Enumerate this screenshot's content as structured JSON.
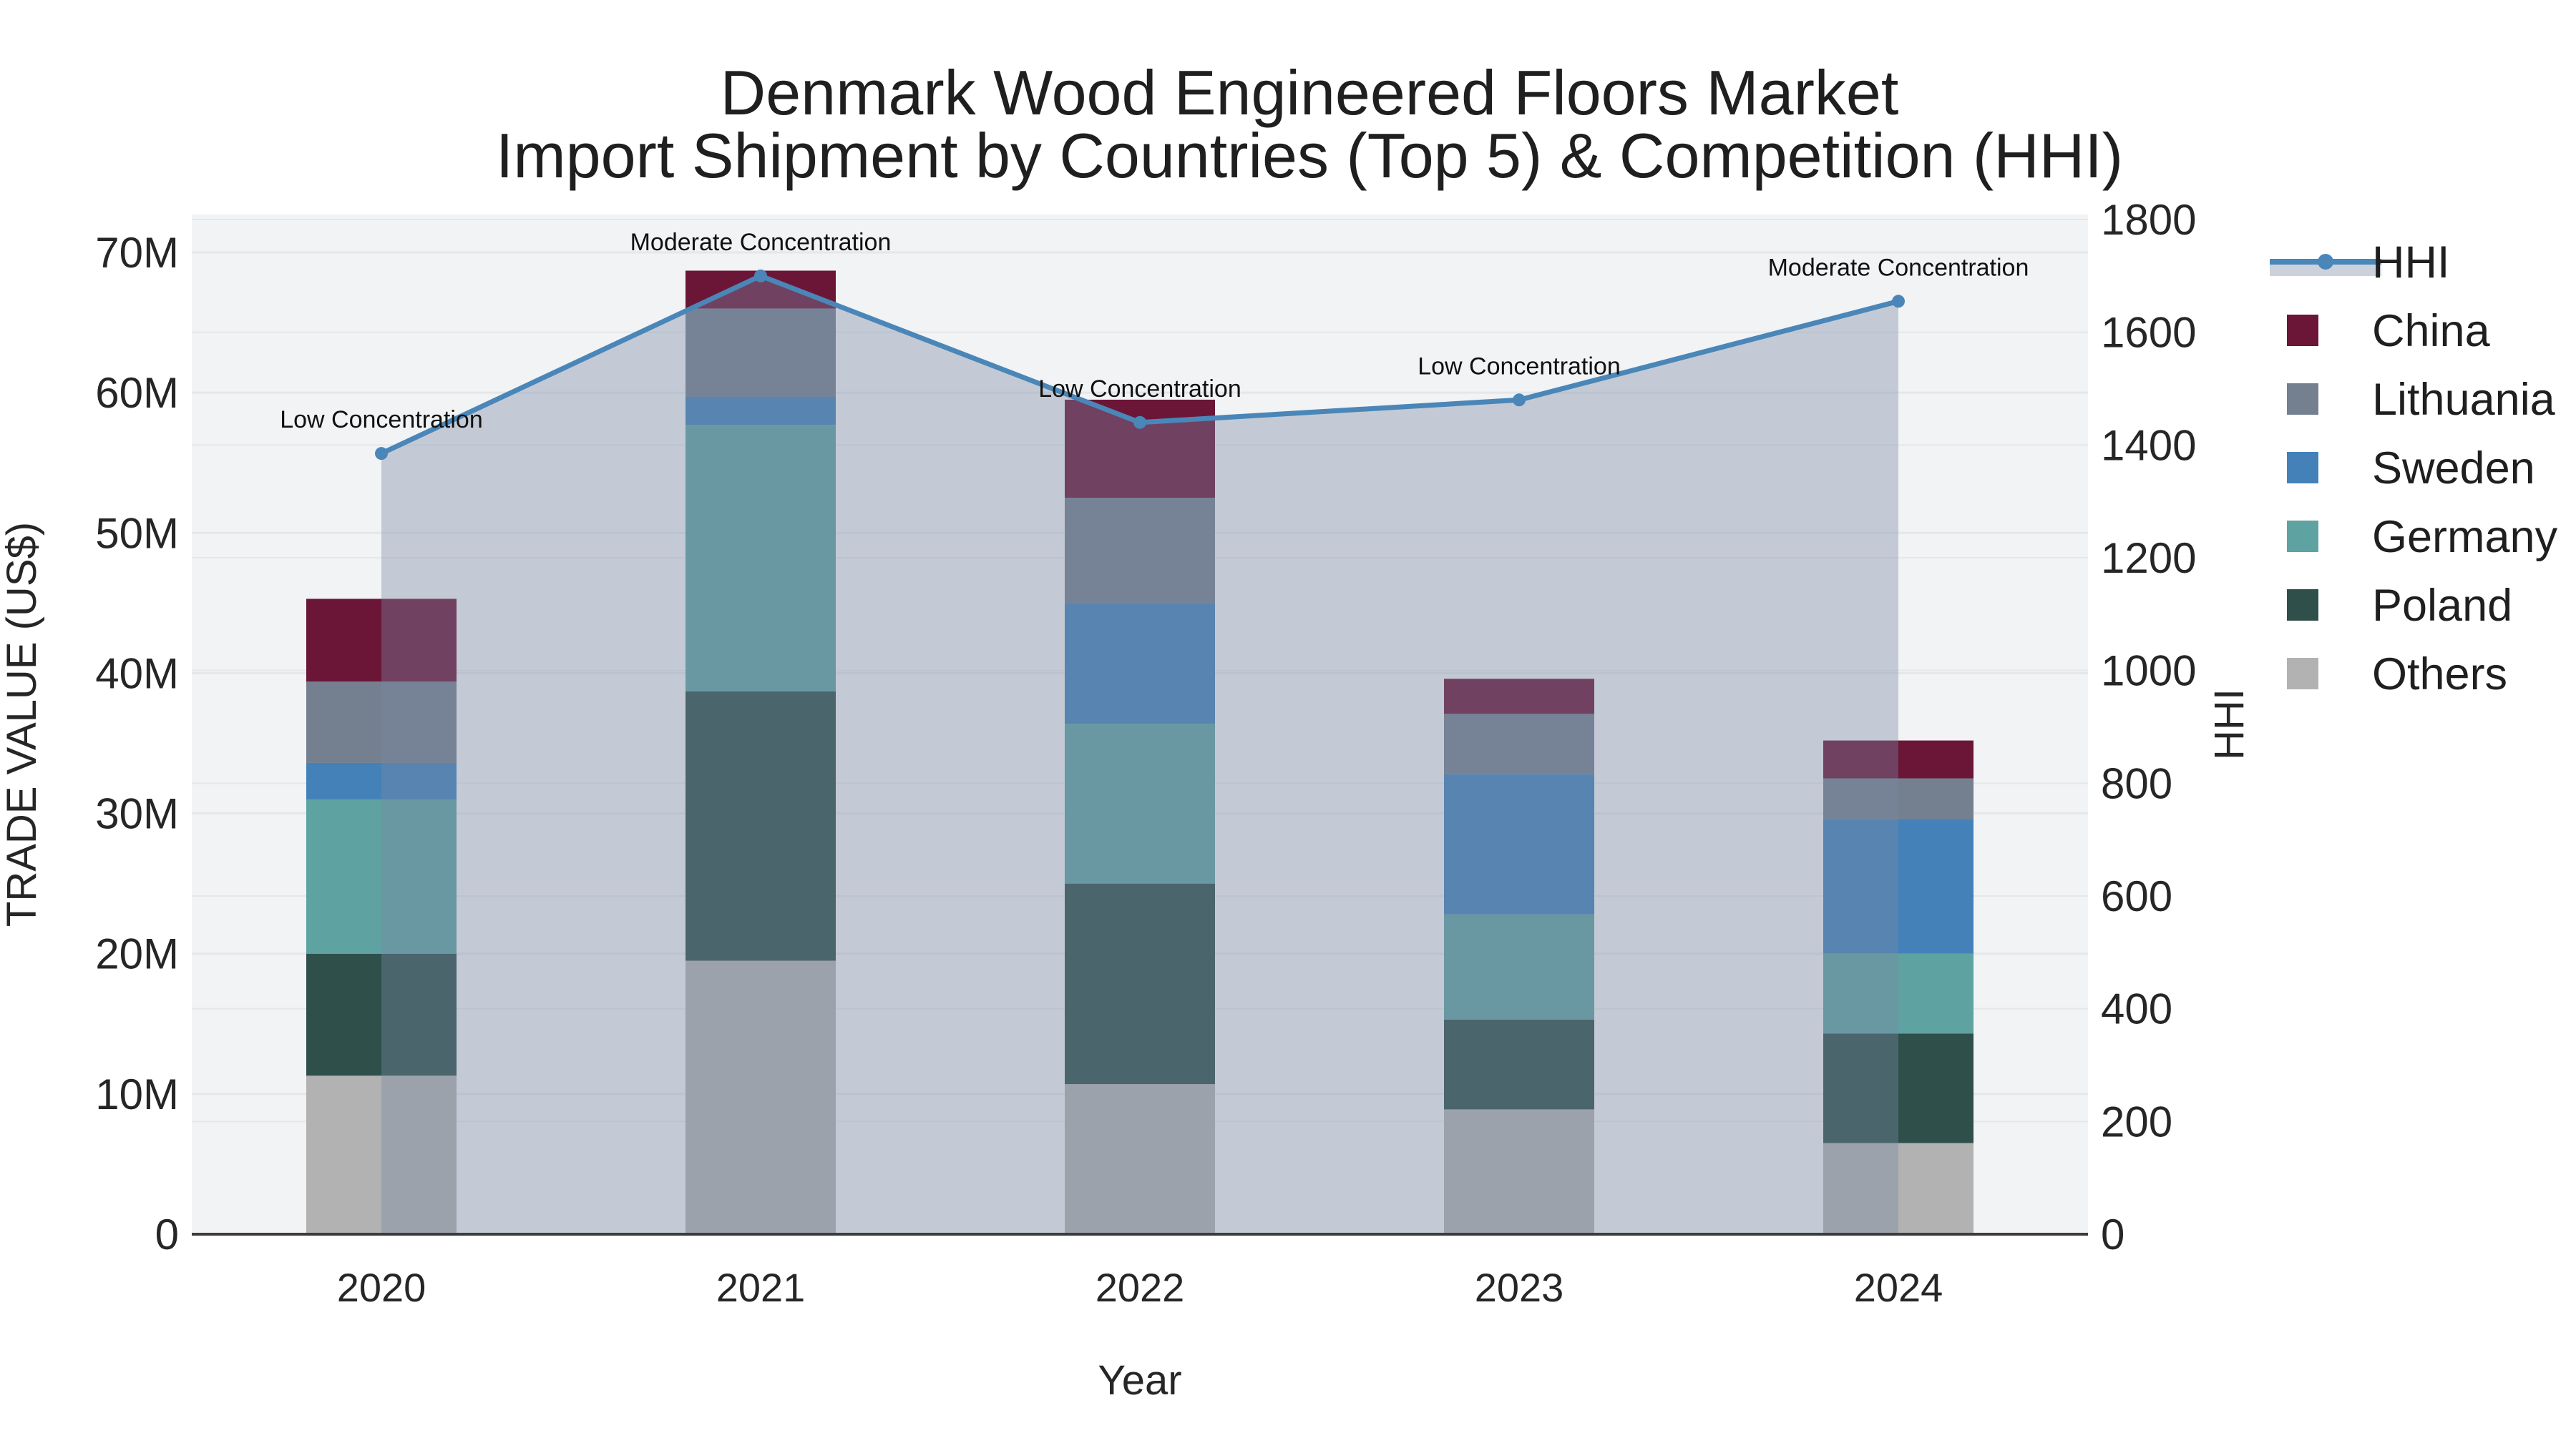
{
  "title": {
    "line1": "Denmark Wood Engineered Floors Market",
    "line2": "Import Shipment by Countries (Top 5) & Competition (HHI)"
  },
  "chart_data": {
    "type": "bar+line",
    "subtype": "stacked bars (left axis) with HHI line and filled area (right axis)",
    "categories": [
      "2020",
      "2021",
      "2022",
      "2023",
      "2024"
    ],
    "bar_unit": "million US$",
    "series": [
      {
        "name": "Others",
        "color": "#b2b2b2",
        "values": [
          11.3,
          19.5,
          10.7,
          8.9,
          6.5
        ]
      },
      {
        "name": "Poland",
        "color": "#2f4f4b",
        "values": [
          8.7,
          19.2,
          14.3,
          6.4,
          7.8
        ]
      },
      {
        "name": "Germany",
        "color": "#5fa2a2",
        "values": [
          11.0,
          19.0,
          11.4,
          7.5,
          5.7
        ]
      },
      {
        "name": "Sweden",
        "color": "#4381b8",
        "values": [
          2.6,
          2.0,
          8.6,
          10.0,
          9.6
        ]
      },
      {
        "name": "Lithuania",
        "color": "#74808f",
        "values": [
          5.8,
          6.3,
          7.5,
          4.3,
          2.9
        ]
      },
      {
        "name": "China",
        "color": "#6b1637",
        "values": [
          5.9,
          2.7,
          7.0,
          2.5,
          2.7
        ]
      }
    ],
    "bar_totals": [
      45.3,
      68.7,
      59.5,
      39.6,
      35.2
    ],
    "hhi": {
      "name": "HHI",
      "line_color": "#4a86b8",
      "fill_color": "rgba(120,137,163,0.38)",
      "values": [
        1385,
        1700,
        1440,
        1480,
        1655
      ]
    },
    "annotations": [
      "Low Concentration",
      "Moderate Concentration",
      "Low Concentration",
      "Low Concentration",
      "Moderate Concentration"
    ],
    "axes": {
      "x": {
        "title": "Year"
      },
      "y_left": {
        "title": "TRADE VALUE (US$)",
        "tick_values": [
          0,
          10,
          20,
          30,
          40,
          50,
          60,
          70
        ],
        "tick_labels": [
          "0",
          "10M",
          "20M",
          "30M",
          "40M",
          "50M",
          "60M",
          "70M"
        ]
      },
      "y_right": {
        "title": "HHI",
        "tick_values": [
          0,
          200,
          400,
          600,
          800,
          1000,
          1200,
          1400,
          1600,
          1800
        ],
        "tick_labels": [
          "0",
          "200",
          "400",
          "600",
          "800",
          "1000",
          "1200",
          "1400",
          "1600",
          "1800"
        ]
      }
    },
    "legend_items": [
      {
        "label": "HHI",
        "type": "line",
        "color": "#4a86b8"
      },
      {
        "label": "China",
        "type": "swatch",
        "color": "#6b1637"
      },
      {
        "label": "Lithuania",
        "type": "swatch",
        "color": "#74808f"
      },
      {
        "label": "Sweden",
        "type": "swatch",
        "color": "#4381b8"
      },
      {
        "label": "Germany",
        "type": "swatch",
        "color": "#5fa2a2"
      },
      {
        "label": "Poland",
        "type": "swatch",
        "color": "#2f4f4b"
      },
      {
        "label": "Others",
        "type": "swatch",
        "color": "#b2b2b2"
      }
    ],
    "style": {
      "plot_bg": "#f2f3f4",
      "grid_color": "#e4e7eb",
      "axis_line_color": "#3c3c3c",
      "legend_fill_band": "#ccd2dc"
    }
  }
}
